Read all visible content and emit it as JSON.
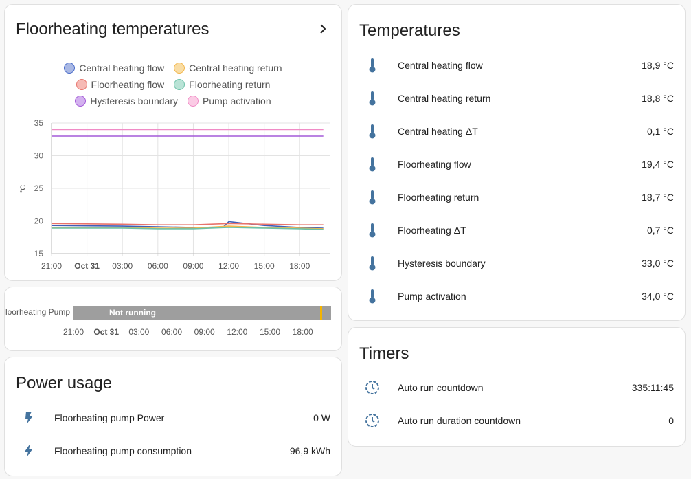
{
  "floor_card": {
    "title": "Floorheating temperatures",
    "legend": [
      {
        "label": "Central heating flow",
        "color": "#4a6cc9"
      },
      {
        "label": "Central heating return",
        "color": "#f2b64c"
      },
      {
        "label": "Floorheating flow",
        "color": "#e8736b"
      },
      {
        "label": "Floorheating return",
        "color": "#6cc1a8"
      },
      {
        "label": "Hysteresis boundary",
        "color": "#a35ad8"
      },
      {
        "label": "Pump activation",
        "color": "#f08bc6"
      }
    ]
  },
  "chart_data": {
    "type": "line",
    "ylabel": "°C",
    "ylim": [
      15,
      35
    ],
    "yticks": [
      "35",
      "30",
      "25",
      "20",
      "15"
    ],
    "xticks": [
      "21:00",
      "Oct 31",
      "03:00",
      "06:00",
      "09:00",
      "12:00",
      "15:00",
      "18:00"
    ],
    "series": [
      {
        "name": "Central heating flow",
        "color": "#3f5fb8",
        "x": [
          "21:00",
          "03:00",
          "06:00",
          "09:00",
          "11:30",
          "12:00",
          "15:00",
          "18:00",
          "20:00"
        ],
        "y": [
          19.3,
          19.2,
          19.1,
          19.0,
          19.0,
          19.9,
          19.3,
          19.0,
          18.9
        ]
      },
      {
        "name": "Central heating return",
        "color": "#f2b64c",
        "x": [
          "21:00",
          "03:00",
          "06:00",
          "09:00",
          "12:00",
          "15:00",
          "18:00",
          "20:00"
        ],
        "y": [
          19.0,
          19.0,
          18.9,
          18.9,
          19.2,
          19.0,
          18.9,
          18.8
        ]
      },
      {
        "name": "Floorheating flow",
        "color": "#e8736b",
        "x": [
          "21:00",
          "03:00",
          "06:00",
          "09:00",
          "12:00",
          "15:00",
          "18:00",
          "20:00"
        ],
        "y": [
          19.6,
          19.5,
          19.4,
          19.4,
          19.6,
          19.5,
          19.4,
          19.4
        ]
      },
      {
        "name": "Floorheating return",
        "color": "#6cc1a8",
        "x": [
          "21:00",
          "03:00",
          "06:00",
          "09:00",
          "12:00",
          "15:00",
          "18:00",
          "20:00"
        ],
        "y": [
          18.9,
          18.9,
          18.8,
          18.8,
          19.0,
          18.9,
          18.8,
          18.7
        ]
      },
      {
        "name": "Hysteresis boundary",
        "color": "#a35ad8",
        "x": [
          "21:00",
          "20:00"
        ],
        "y": [
          33.0,
          33.0
        ]
      },
      {
        "name": "Pump activation",
        "color": "#f08bc6",
        "x": [
          "21:00",
          "20:00"
        ],
        "y": [
          34.0,
          34.0
        ]
      }
    ]
  },
  "pump_card": {
    "label": "Floorheating Pump",
    "state": "Not running",
    "bar_color": "#9e9e9e",
    "marker_color": "#f4b400",
    "xticks": [
      "21:00",
      "Oct 31",
      "03:00",
      "06:00",
      "09:00",
      "12:00",
      "15:00",
      "18:00"
    ]
  },
  "power_card": {
    "title": "Power usage",
    "rows": [
      {
        "icon": "flash-icon",
        "name": "Floorheating pump Power",
        "value": "0 W"
      },
      {
        "icon": "lightning-icon",
        "name": "Floorheating pump consumption",
        "value": "96,9 kWh"
      }
    ]
  },
  "temps_card": {
    "title": "Temperatures",
    "rows": [
      {
        "name": "Central heating flow",
        "value": "18,9 °C"
      },
      {
        "name": "Central heating return",
        "value": "18,8 °C"
      },
      {
        "name": "Central heating ΔT",
        "value": "0,1 °C"
      },
      {
        "name": "Floorheating flow",
        "value": "19,4 °C"
      },
      {
        "name": "Floorheating return",
        "value": "18,7 °C"
      },
      {
        "name": "Floorheating ΔT",
        "value": "0,7 °C"
      },
      {
        "name": "Hysteresis boundary",
        "value": "33,0 °C"
      },
      {
        "name": "Pump activation",
        "value": "34,0 °C"
      }
    ]
  },
  "timers_card": {
    "title": "Timers",
    "rows": [
      {
        "name": "Auto run countdown",
        "value": "335:11:45"
      },
      {
        "name": "Auto run duration countdown",
        "value": "0"
      }
    ]
  },
  "icon_color": "#44739e"
}
